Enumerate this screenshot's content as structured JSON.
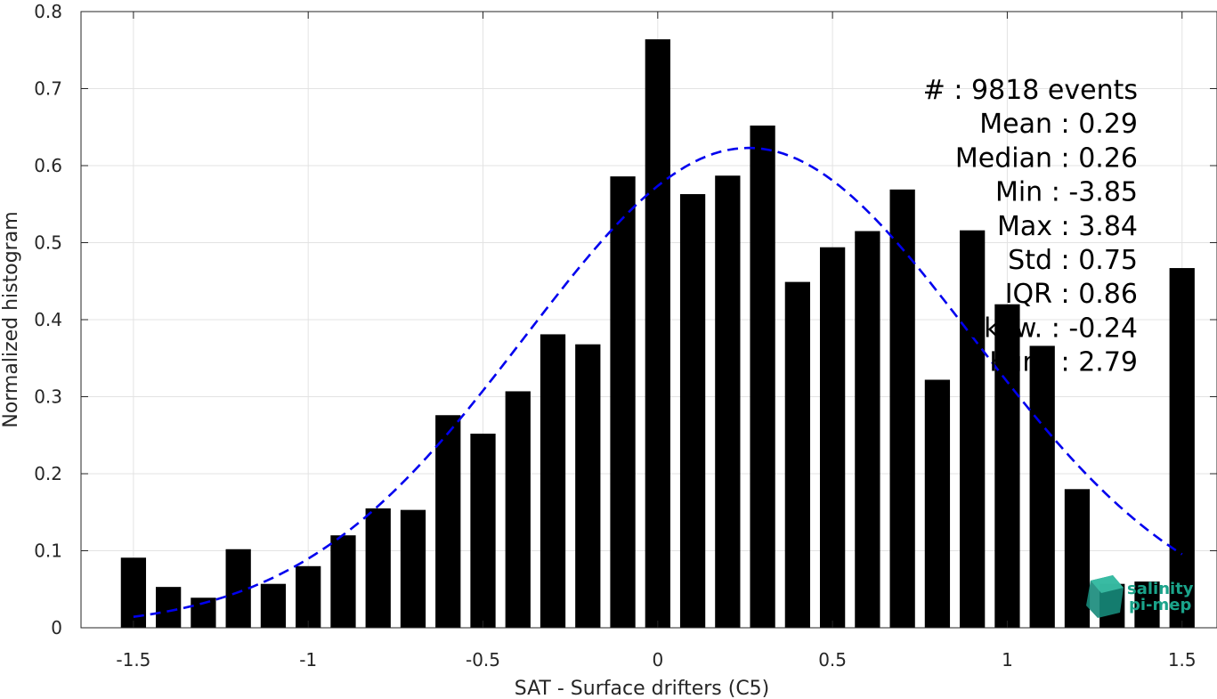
{
  "chart_data": {
    "type": "bar",
    "xlabel": "SAT - Surface drifters (C5)",
    "ylabel": "Normalized histogram",
    "xlim": [
      -1.65,
      1.6
    ],
    "ylim": [
      0,
      0.8
    ],
    "xticks": [
      -1.5,
      -1,
      -0.5,
      0,
      0.5,
      1,
      1.5
    ],
    "xtick_labels": [
      "-1.5",
      "-1",
      "-0.5",
      "0",
      "0.5",
      "1",
      "1.5"
    ],
    "yticks": [
      0,
      0.1,
      0.2,
      0.3,
      0.4,
      0.5,
      0.6,
      0.7,
      0.8
    ],
    "ytick_labels": [
      "0",
      "0.1",
      "0.2",
      "0.3",
      "0.4",
      "0.5",
      "0.6",
      "0.7",
      "0.8"
    ],
    "grid": true,
    "bar_color": "#000000",
    "bars": {
      "x": [
        -1.5,
        -1.4,
        -1.3,
        -1.2,
        -1.1,
        -1.0,
        -0.9,
        -0.8,
        -0.7,
        -0.6,
        -0.5,
        -0.4,
        -0.3,
        -0.2,
        -0.1,
        0.0,
        0.1,
        0.2,
        0.3,
        0.4,
        0.5,
        0.6,
        0.7,
        0.8,
        0.9,
        1.0,
        1.1,
        1.2,
        1.3,
        1.4,
        1.5
      ],
      "values": [
        0.091,
        0.053,
        0.039,
        0.102,
        0.057,
        0.08,
        0.12,
        0.155,
        0.153,
        0.276,
        0.252,
        0.307,
        0.381,
        0.368,
        0.586,
        0.764,
        0.563,
        0.587,
        0.652,
        0.449,
        0.494,
        0.515,
        0.569,
        0.322,
        0.516,
        0.42,
        0.366,
        0.18,
        0.057,
        0.06,
        0.467
      ]
    },
    "fit": {
      "style": "dashed",
      "color": "#0000ee",
      "mean": 0.26,
      "std": 0.64,
      "peak": 0.623,
      "x_range": [
        -1.5,
        1.5
      ]
    },
    "stats": [
      "#  : 9818 events",
      "Mean : 0.29",
      "Median : 0.26",
      "Min : -3.85",
      "Max : 3.84",
      "Std : 0.75",
      "IQR : 0.86",
      "Skew. : -0.24",
      "Kurt. : 2.79"
    ]
  },
  "logo": {
    "line1": "salinity",
    "line2": "pi-mep",
    "color": "#1aa38a"
  }
}
